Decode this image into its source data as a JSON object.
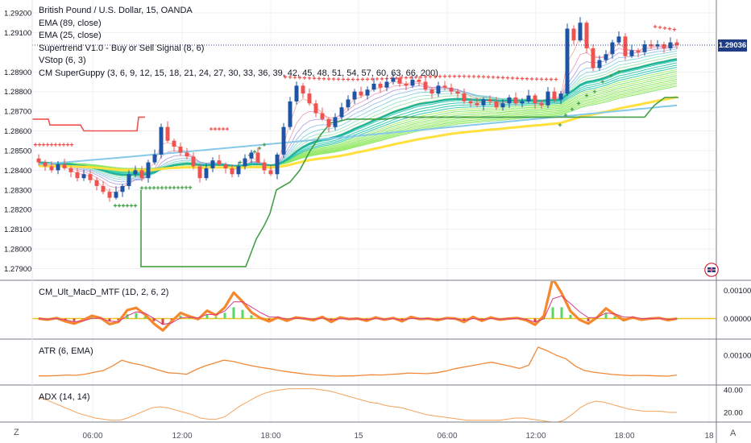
{
  "legend": {
    "title": "British Pound / U.S. Dollar, 15, OANDA",
    "indicators": [
      "EMA (89, close)",
      "EMA (25, close)",
      "Supertrend V1.0 - Buy or Sell Signal (8, 6)",
      "VStop (6, 3)",
      "CM SuperGuppy (3, 6, 9, 12, 15, 18, 21, 24, 27, 30, 33, 36, 39, 42, 45, 48, 51, 54, 57, 60, 63, 66, 200)"
    ]
  },
  "panes": {
    "macd_label": "CM_Ult_MacD_MTF (1D, 2, 6, 2)",
    "atr_label": "ATR (6, EMA)",
    "adx_label": "ADX (14, 14)"
  },
  "price_badge": "1.29036",
  "corner_z": "Z",
  "corner_a": "A",
  "colors": {
    "up_candle": "#1e53a5",
    "down_candle": "#ef5350",
    "ema89": "#ffe03c",
    "ema200": "#87c9e8",
    "supertrend": "#ef5350",
    "vstop": "#43a047",
    "guppy_teal": "#26c6a8",
    "macd_orange": "#f7872c",
    "atr": "#f08a3a",
    "adx": "#f4a25a"
  },
  "chart_data": [
    {
      "type": "line",
      "title": "British Pound / U.S. Dollar, 15, OANDA",
      "x_tick_labels": [
        "06:00",
        "12:00",
        "18:00",
        "15",
        "06:00",
        "12:00",
        "18:00",
        "18"
      ],
      "y_tick_labels": [
        "1.29200",
        "1.29100",
        "1.29036",
        "1.28900",
        "1.28800",
        "1.28700",
        "1.28600",
        "1.28500",
        "1.28400",
        "1.28300",
        "1.28200",
        "1.28100",
        "1.28000",
        "1.27900"
      ],
      "ylim": [
        1.2787,
        1.2922
      ],
      "current_price": 1.29036,
      "grid": true,
      "bars_estimated": 100,
      "close": [
        1.2844,
        1.2842,
        1.284,
        1.2843,
        1.2841,
        1.2839,
        1.2836,
        1.2838,
        1.2835,
        1.2832,
        1.2829,
        1.2826,
        1.2829,
        1.2832,
        1.2838,
        1.284,
        1.2836,
        1.2844,
        1.2848,
        1.2862,
        1.2855,
        1.2852,
        1.2849,
        1.2847,
        1.2842,
        1.2836,
        1.2841,
        1.2845,
        1.2843,
        1.2841,
        1.2838,
        1.2842,
        1.2846,
        1.2849,
        1.2844,
        1.284,
        1.2838,
        1.2848,
        1.2862,
        1.2875,
        1.2883,
        1.2879,
        1.2874,
        1.2869,
        1.2866,
        1.2862,
        1.2867,
        1.2872,
        1.2876,
        1.288,
        1.2878,
        1.2881,
        1.2884,
        1.2882,
        1.2885,
        1.2887,
        1.2884,
        1.2883,
        1.2886,
        1.2885,
        1.2881,
        1.2879,
        1.2883,
        1.2882,
        1.288,
        1.2879,
        1.2875,
        1.2874,
        1.2873,
        1.2876,
        1.2875,
        1.2872,
        1.2874,
        1.2877,
        1.2874,
        1.2875,
        1.2878,
        1.2874,
        1.2873,
        1.288,
        1.2876,
        1.2879,
        1.2912,
        1.2906,
        1.2915,
        1.2902,
        1.2892,
        1.2896,
        1.2899,
        1.2905,
        1.2908,
        1.2898,
        1.2901,
        1.29,
        1.2904,
        1.2903,
        1.2904,
        1.2902,
        1.2905,
        1.29036
      ]
    },
    {
      "type": "line",
      "title": "CM_Ult_MacD_MTF (1D, 2, 6, 2)",
      "y_tick_labels": [
        "0.00100",
        "0.00000"
      ],
      "ylim": [
        -0.0011,
        0.0017
      ],
      "values": [
        0.0,
        -4e-05,
        2e-05,
        -0.0001,
        -0.00018,
        -6e-05,
        0.0001,
        2e-05,
        -0.0002,
        -0.00012,
        0.0003,
        0.00038,
        0.00014,
        -0.00018,
        -0.00042,
        -0.0001,
        0.0002,
        8e-05,
        -2e-05,
        0.00028,
        0.00012,
        0.0004,
        0.00092,
        0.0006,
        0.00022,
        2e-05,
        -0.0001,
        4e-05,
        -8e-05,
        4e-05,
        0.0,
        -6e-05,
        6e-05,
        -0.00012,
        4e-05,
        -2e-05,
        0.0,
        -8e-05,
        4e-05,
        -4e-05,
        2e-05,
        -0.0001,
        6e-05,
        -2e-05,
        0.0,
        -6e-05,
        2e-05,
        0.0,
        -0.00012,
        6e-05,
        -8e-05,
        4e-05,
        -4e-05,
        0.0,
        2e-05,
        -6e-05,
        -0.00022,
        0.0001,
        0.00142,
        0.0009,
        0.00026,
        -4e-05,
        -0.00018,
        4e-05,
        0.00036,
        0.00014,
        -6e-05,
        4e-05,
        -4e-05,
        0.0,
        2e-05,
        -6e-05,
        0.0
      ]
    },
    {
      "type": "line",
      "title": "ATR (6, EMA)",
      "y_tick_labels": [
        "0.00100"
      ],
      "ylim": [
        0.00012,
        0.00142
      ],
      "values": [
        0.00027,
        0.00027,
        0.00028,
        0.0003,
        0.00029,
        0.00033,
        0.0004,
        0.00046,
        0.00062,
        0.00082,
        0.00072,
        0.00066,
        0.00057,
        0.00047,
        0.00038,
        0.00036,
        0.00033,
        0.00049,
        0.00062,
        0.00072,
        0.00082,
        0.00078,
        0.0007,
        0.00063,
        0.00057,
        0.00052,
        0.00046,
        0.00041,
        0.00037,
        0.00033,
        0.0003,
        0.00028,
        0.00026,
        0.00027,
        0.00027,
        0.00029,
        0.00031,
        0.0003,
        0.00032,
        0.00034,
        0.00037,
        0.00036,
        0.00035,
        0.00038,
        0.00044,
        0.00052,
        0.00058,
        0.00064,
        0.0007,
        0.00075,
        0.00068,
        0.00061,
        0.00053,
        0.00065,
        0.00128,
        0.00115,
        0.00099,
        0.00087,
        0.00062,
        0.00046,
        0.0004,
        0.00036,
        0.00032,
        0.0003,
        0.00028,
        0.00029,
        0.00028,
        0.00027,
        0.00026,
        0.0003
      ]
    },
    {
      "type": "line",
      "title": "ADX (14, 14)",
      "y_tick_labels": [
        "40.00",
        "20.00"
      ],
      "ylim": [
        6,
        48
      ],
      "values": [
        33,
        31,
        28,
        25,
        22,
        19,
        17,
        15,
        14,
        13,
        13,
        15,
        18,
        21,
        24,
        25,
        24,
        22,
        20,
        18,
        15,
        14,
        14,
        16,
        21,
        26,
        30,
        34,
        37,
        39,
        40,
        41,
        41,
        41,
        41,
        40,
        39,
        37,
        35,
        33,
        31,
        29,
        28,
        26,
        25,
        24,
        22,
        20,
        18,
        17,
        16,
        15,
        14,
        13,
        13,
        13,
        13,
        13,
        14,
        15,
        15,
        14,
        13,
        12,
        11,
        13,
        18,
        24,
        28,
        30,
        29,
        27,
        25,
        23,
        22,
        21,
        21,
        21,
        20,
        20
      ]
    }
  ]
}
